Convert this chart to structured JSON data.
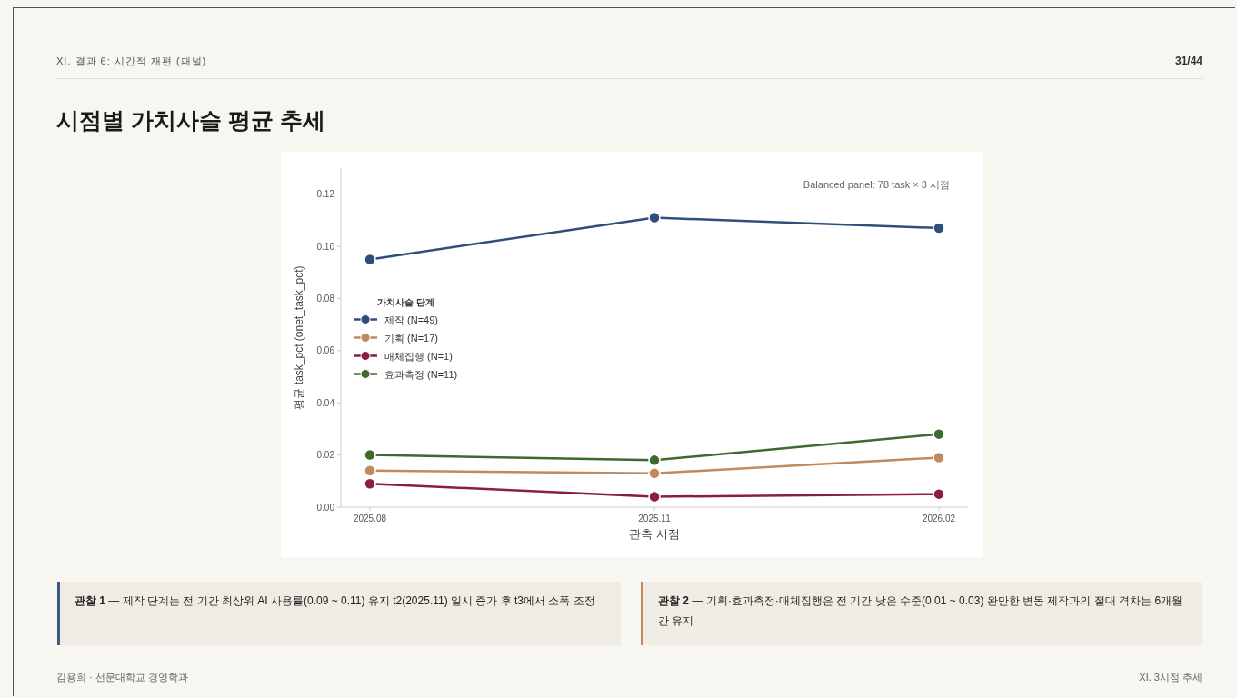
{
  "chart_data": {
    "type": "line",
    "title": "시점별 가치사슬 평균 추세",
    "xlabel": "관측 시점",
    "ylabel": "평균 task_pct (onet_task_pct)",
    "legend_title": "가치사슬 단계",
    "categories": [
      "2025.08",
      "2025.11",
      "2026.02"
    ],
    "series": [
      {
        "name": "제작 (N=49)",
        "color": "#2f4f7a",
        "values": [
          0.095,
          0.111,
          0.107
        ]
      },
      {
        "name": "기획 (N=17)",
        "color": "#c08a5e",
        "values": [
          0.014,
          0.013,
          0.019
        ]
      },
      {
        "name": "매체집행 (N=1)",
        "color": "#8b1e3a",
        "values": [
          0.009,
          0.004,
          0.005
        ]
      },
      {
        "name": "효과측정 (N=11)",
        "color": "#3d6b2e",
        "values": [
          0.02,
          0.018,
          0.028
        ]
      }
    ],
    "ylim": [
      0,
      0.13
    ],
    "yticks": [
      {
        "value": 0,
        "label": "0.00"
      },
      {
        "value": 0.02,
        "label": "0.02"
      },
      {
        "value": 0.04,
        "label": "0.04"
      },
      {
        "value": 0.06,
        "label": "0.06"
      },
      {
        "value": 0.08,
        "label": "0.08"
      },
      {
        "value": 0.1,
        "label": "0.10"
      },
      {
        "value": 0.12,
        "label": "0.12"
      }
    ],
    "grid": false,
    "legend": "left",
    "marker": "circle",
    "annotations": [
      "XI. 결과 6: 시간적 재편 (패널)",
      "31/44",
      "Balanced panel: 78 task × 3 시점",
      "관찰 1 — 제작 단계는 전 기간 최상위 AI 사용률(0.09 ~ 0.11) 유지 t2(2025.11) 일시 증가 후 t3에서 소폭 조정",
      "관찰 2 — 기획·효과측정·매체집행은 전 기간 낮은 수준(0.01 ~ 0.03) 완만한 변동 제작과의 절대 격차는 6개월간 유지",
      "김용희 · 선문대학교 경영학과",
      "XI. 3시점 추세"
    ]
  }
}
